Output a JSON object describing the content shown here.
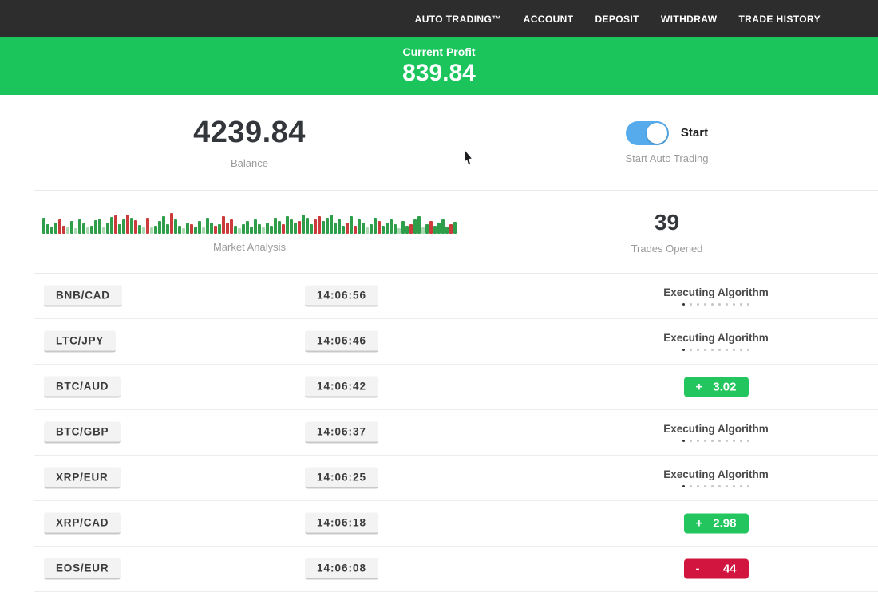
{
  "nav": {
    "items": [
      {
        "id": "auto-trading",
        "label": "AUTO TRADING™"
      },
      {
        "id": "account",
        "label": "ACCOUNT"
      },
      {
        "id": "deposit",
        "label": "DEPOSIT"
      },
      {
        "id": "withdraw",
        "label": "WITHDRAW"
      },
      {
        "id": "trade-history",
        "label": "TRADE HISTORY"
      }
    ]
  },
  "profit_banner": {
    "label": "Current Profit",
    "value": "839.84",
    "bg": "#1cc55c"
  },
  "stats": {
    "balance": {
      "value": "4239.84",
      "label": "Balance"
    },
    "auto_trading": {
      "toggle_on": true,
      "toggle_label": "Start",
      "label": "Start Auto Trading",
      "toggle_color": "#55abeb"
    },
    "trades_opened": {
      "value": "39",
      "label": "Trades Opened"
    }
  },
  "market_analysis": {
    "type": "bar",
    "label": "Market Analysis",
    "colors": {
      "g": "#2f9e4a",
      "r": "#cc3b3b",
      "G": "#aad8b2",
      "R": "#e6b0b0"
    },
    "bars": [
      "g20",
      "g12",
      "g9",
      "g14",
      "r18",
      "r10",
      "G8",
      "g16",
      "G7",
      "g18",
      "g13",
      "G8",
      "g10",
      "g17",
      "g19",
      "G8",
      "g14",
      "g21",
      "r23",
      "g12",
      "g18",
      "r24",
      "g20",
      "r17",
      "g11",
      "G8",
      "r20",
      "G8",
      "g10",
      "g16",
      "g22",
      "g12",
      "r26",
      "g18",
      "g10",
      "G7",
      "g14",
      "r12",
      "g9",
      "g16",
      "G8",
      "g20",
      "g14",
      "r10",
      "g12",
      "r22",
      "r14",
      "r18",
      "g10",
      "G7",
      "g12",
      "g16",
      "g9",
      "g18",
      "g12",
      "G8",
      "g14",
      "g10",
      "g20",
      "g16",
      "r12",
      "g22",
      "g18",
      "g14",
      "r16",
      "g24",
      "g20",
      "g12",
      "r18",
      "r22",
      "g16",
      "g20",
      "g24",
      "g14",
      "g18",
      "g10",
      "r14",
      "g22",
      "r10",
      "g18",
      "g14",
      "G8",
      "g12",
      "g20",
      "r16",
      "g10",
      "g14",
      "g18",
      "g12",
      "G7",
      "g16",
      "g10",
      "r12",
      "g18",
      "g22",
      "G8",
      "g12",
      "r16",
      "g10",
      "g14",
      "g18",
      "g9",
      "r12",
      "g15"
    ]
  },
  "trades": {
    "executing_label": "Executing Algorithm",
    "dots_total": 10,
    "rows": [
      {
        "pair": "BNB/CAD",
        "time": "14:06:56",
        "status": "executing"
      },
      {
        "pair": "LTC/JPY",
        "time": "14:06:46",
        "status": "executing"
      },
      {
        "pair": "BTC/AUD",
        "time": "14:06:42",
        "status": "profit",
        "sign": "+",
        "value": "3.02"
      },
      {
        "pair": "BTC/GBP",
        "time": "14:06:37",
        "status": "executing"
      },
      {
        "pair": "XRP/EUR",
        "time": "14:06:25",
        "status": "executing"
      },
      {
        "pair": "XRP/CAD",
        "time": "14:06:18",
        "status": "profit",
        "sign": "+",
        "value": "2.98"
      },
      {
        "pair": "EOS/EUR",
        "time": "14:06:08",
        "status": "loss",
        "sign": "-",
        "value": "44"
      }
    ]
  },
  "colors": {
    "nav_bg": "#2d2d2d",
    "banner_green": "#1cc55c",
    "badge_green": "#22c55e",
    "badge_red": "#d2153f",
    "toggle_blue": "#55abeb"
  }
}
